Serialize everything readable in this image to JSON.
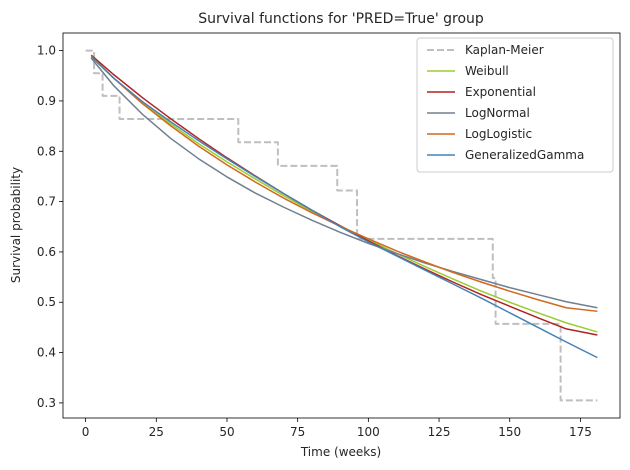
{
  "chart_data": {
    "type": "line",
    "title": "Survival functions for 'PRED=True' group",
    "xlabel": "Time (weeks)",
    "ylabel": "Survival probability",
    "xlim": [
      -8,
      189
    ],
    "ylim": [
      0.27,
      1.035
    ],
    "xticks": [
      0,
      25,
      50,
      75,
      100,
      125,
      150,
      175
    ],
    "yticks": [
      0.3,
      0.4,
      0.5,
      0.6,
      0.7,
      0.8,
      0.9,
      1.0
    ],
    "xtick_labels": [
      "0",
      "25",
      "50",
      "75",
      "100",
      "125",
      "150",
      "175"
    ],
    "ytick_labels": [
      "0.3",
      "0.4",
      "0.5",
      "0.6",
      "0.7",
      "0.8",
      "0.9",
      "1.0"
    ],
    "grid": false,
    "legend_position": "top-right",
    "series": [
      {
        "name": "Kaplan-Meier",
        "style": "step-dashed",
        "color": "#bfbfbf",
        "x": [
          0,
          3,
          6,
          12,
          54,
          68,
          89,
          96,
          144,
          145,
          168,
          181
        ],
        "y": [
          1.0,
          0.955,
          0.91,
          0.864,
          0.818,
          0.771,
          0.722,
          0.626,
          0.548,
          0.457,
          0.305,
          0.305
        ]
      },
      {
        "name": "Weibull",
        "color": "#9acd32",
        "x": [
          2,
          10,
          20,
          30,
          40,
          50,
          60,
          70,
          80,
          90,
          100,
          110,
          120,
          130,
          140,
          150,
          160,
          170,
          181
        ],
        "y": [
          0.988,
          0.945,
          0.897,
          0.855,
          0.815,
          0.779,
          0.745,
          0.712,
          0.681,
          0.652,
          0.624,
          0.597,
          0.571,
          0.546,
          0.522,
          0.5,
          0.479,
          0.459,
          0.441
        ]
      },
      {
        "name": "Exponential",
        "color": "#b22222",
        "x": [
          2,
          10,
          20,
          30,
          40,
          50,
          60,
          70,
          80,
          90,
          100,
          110,
          120,
          130,
          140,
          150,
          160,
          170,
          181
        ],
        "y": [
          0.991,
          0.952,
          0.907,
          0.865,
          0.825,
          0.787,
          0.751,
          0.716,
          0.683,
          0.652,
          0.622,
          0.593,
          0.566,
          0.54,
          0.515,
          0.492,
          0.469,
          0.447,
          0.435
        ]
      },
      {
        "name": "LogNormal",
        "color": "#708090",
        "x": [
          2,
          10,
          20,
          30,
          40,
          50,
          60,
          70,
          80,
          90,
          100,
          110,
          120,
          130,
          140,
          150,
          160,
          170,
          181
        ],
        "y": [
          0.985,
          0.93,
          0.874,
          0.826,
          0.785,
          0.749,
          0.717,
          0.689,
          0.663,
          0.639,
          0.617,
          0.597,
          0.578,
          0.561,
          0.545,
          0.529,
          0.515,
          0.501,
          0.489
        ]
      },
      {
        "name": "LogLogistic",
        "color": "#d2691e",
        "x": [
          2,
          10,
          20,
          30,
          40,
          50,
          60,
          70,
          80,
          90,
          100,
          110,
          120,
          130,
          140,
          150,
          160,
          170,
          181
        ],
        "y": [
          0.989,
          0.945,
          0.895,
          0.851,
          0.81,
          0.773,
          0.739,
          0.707,
          0.678,
          0.651,
          0.626,
          0.602,
          0.58,
          0.559,
          0.54,
          0.522,
          0.505,
          0.489,
          0.482
        ]
      },
      {
        "name": "GeneralizedGamma",
        "color": "#4682b4",
        "x": [
          2,
          10,
          20,
          30,
          40,
          50,
          60,
          70,
          80,
          90,
          100,
          110,
          120,
          130,
          140,
          150,
          160,
          170,
          181
        ],
        "y": [
          0.988,
          0.945,
          0.899,
          0.859,
          0.821,
          0.785,
          0.75,
          0.716,
          0.683,
          0.65,
          0.62,
          0.592,
          0.564,
          0.536,
          0.508,
          0.479,
          0.45,
          0.421,
          0.39
        ]
      }
    ]
  }
}
